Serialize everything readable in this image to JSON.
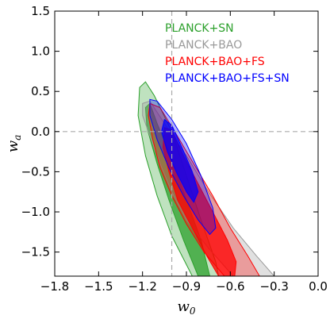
{
  "chart_data": {
    "type": "contour",
    "title": "",
    "xlabel": "w",
    "xlabel_sub": "0",
    "ylabel": "w",
    "ylabel_sub": "a",
    "xlim": [
      -1.8,
      0.0
    ],
    "ylim": [
      -1.8,
      1.5
    ],
    "xticks": [
      -1.8,
      -1.5,
      -1.2,
      -0.9,
      -0.6,
      -0.3,
      0.0
    ],
    "xtick_labels": [
      "−1.8",
      "−1.5",
      "−1.2",
      "−0.9",
      "−0.6",
      "−0.3",
      "0.0"
    ],
    "yticks": [
      -1.5,
      -1.0,
      -0.5,
      0.0,
      0.5,
      1.0,
      1.5
    ],
    "ytick_labels": [
      "−1.5",
      "−1.0",
      "−0.5",
      "0.0",
      "0.5",
      "1.0",
      "1.5"
    ],
    "reference_lines": {
      "x": -1.0,
      "y": 0.0
    },
    "legend_position": "top-right",
    "series": [
      {
        "name": "PLANCK+SN",
        "color": "#2ca02c",
        "outer": [
          [
            -1.22,
            0.55
          ],
          [
            -1.18,
            0.62
          ],
          [
            -1.12,
            0.45
          ],
          [
            -1.0,
            0.0
          ],
          [
            -0.9,
            -0.55
          ],
          [
            -0.8,
            -1.1
          ],
          [
            -0.7,
            -1.62
          ],
          [
            -0.68,
            -1.8
          ],
          [
            -0.86,
            -1.8
          ],
          [
            -1.0,
            -1.3
          ],
          [
            -1.1,
            -0.8
          ],
          [
            -1.18,
            -0.3
          ],
          [
            -1.23,
            0.2
          ]
        ],
        "inner": [
          [
            -1.18,
            0.3
          ],
          [
            -1.15,
            0.35
          ],
          [
            -1.1,
            0.1
          ],
          [
            -1.0,
            -0.35
          ],
          [
            -0.9,
            -0.85
          ],
          [
            -0.8,
            -1.35
          ],
          [
            -0.74,
            -1.8
          ],
          [
            -0.82,
            -1.8
          ],
          [
            -0.92,
            -1.35
          ],
          [
            -1.02,
            -0.85
          ],
          [
            -1.1,
            -0.4
          ],
          [
            -1.17,
            0.05
          ]
        ]
      },
      {
        "name": "PLANCK+BAO",
        "color": "#999999",
        "outer": [
          [
            -1.2,
            0.35
          ],
          [
            -1.15,
            0.38
          ],
          [
            -1.05,
            0.1
          ],
          [
            -0.9,
            -0.3
          ],
          [
            -0.75,
            -0.75
          ],
          [
            -0.58,
            -1.2
          ],
          [
            -0.42,
            -1.55
          ],
          [
            -0.3,
            -1.8
          ],
          [
            -0.58,
            -1.8
          ],
          [
            -0.75,
            -1.45
          ],
          [
            -0.9,
            -1.1
          ],
          [
            -1.0,
            -0.75
          ],
          [
            -1.08,
            -0.4
          ],
          [
            -1.15,
            -0.05
          ],
          [
            -1.2,
            0.2
          ]
        ],
        "inner": []
      },
      {
        "name": "PLANCK+BAO+FS",
        "color": "#ff0000",
        "outer": [
          [
            -1.15,
            0.35
          ],
          [
            -1.08,
            0.3
          ],
          [
            -0.98,
            0.0
          ],
          [
            -0.85,
            -0.4
          ],
          [
            -0.72,
            -0.8
          ],
          [
            -0.6,
            -1.2
          ],
          [
            -0.48,
            -1.55
          ],
          [
            -0.4,
            -1.8
          ],
          [
            -0.64,
            -1.8
          ],
          [
            -0.78,
            -1.5
          ],
          [
            -0.9,
            -1.15
          ],
          [
            -1.0,
            -0.8
          ],
          [
            -1.08,
            -0.45
          ],
          [
            -1.13,
            -0.1
          ],
          [
            -1.16,
            0.2
          ]
        ],
        "inner": [
          [
            -1.05,
            0.05
          ],
          [
            -1.0,
            0.02
          ],
          [
            -0.92,
            -0.3
          ],
          [
            -0.82,
            -0.65
          ],
          [
            -0.72,
            -1.0
          ],
          [
            -0.62,
            -1.35
          ],
          [
            -0.56,
            -1.62
          ],
          [
            -0.57,
            -1.8
          ],
          [
            -0.68,
            -1.8
          ],
          [
            -0.76,
            -1.55
          ],
          [
            -0.86,
            -1.2
          ],
          [
            -0.96,
            -0.85
          ],
          [
            -1.02,
            -0.5
          ],
          [
            -1.06,
            -0.2
          ]
        ]
      },
      {
        "name": "PLANCK+BAO+FS+SN",
        "color": "#0000ff",
        "outer": [
          [
            -1.15,
            0.4
          ],
          [
            -1.1,
            0.38
          ],
          [
            -1.0,
            0.15
          ],
          [
            -0.9,
            -0.15
          ],
          [
            -0.8,
            -0.55
          ],
          [
            -0.72,
            -0.95
          ],
          [
            -0.7,
            -1.2
          ],
          [
            -0.74,
            -1.28
          ],
          [
            -0.82,
            -1.1
          ],
          [
            -0.92,
            -0.8
          ],
          [
            -1.02,
            -0.45
          ],
          [
            -1.1,
            -0.1
          ],
          [
            -1.15,
            0.2
          ]
        ],
        "inner": [
          [
            -1.05,
            0.15
          ],
          [
            -1.0,
            0.08
          ],
          [
            -0.93,
            -0.2
          ],
          [
            -0.86,
            -0.5
          ],
          [
            -0.82,
            -0.75
          ],
          [
            -0.85,
            -0.88
          ],
          [
            -0.9,
            -0.75
          ],
          [
            -0.97,
            -0.5
          ],
          [
            -1.03,
            -0.25
          ],
          [
            -1.07,
            0.0
          ]
        ]
      }
    ]
  }
}
